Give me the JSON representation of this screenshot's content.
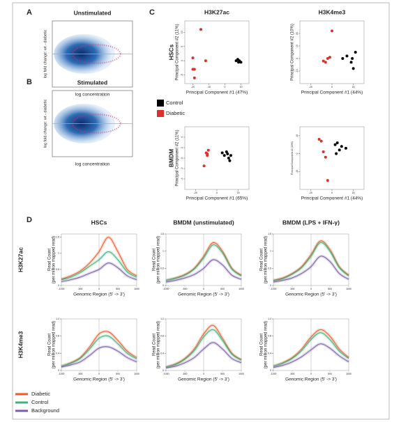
{
  "ma": [
    {
      "letter": "A",
      "title": "Unstimulated",
      "ylabel": "log fold change: wt - diabetic",
      "xlabel": "log concentration"
    },
    {
      "letter": "B",
      "title": "Stimulated",
      "ylabel": "log fold change: wt - diabetic",
      "xlabel": "log concentration"
    }
  ],
  "pca": {
    "letter": "C",
    "columns": [
      "H3K27ac",
      "H3K4me3"
    ],
    "rows": [
      "HSCs",
      "BMDM"
    ],
    "legend": [
      {
        "name": "Control",
        "color": "#000000"
      },
      {
        "name": "Diabetic",
        "color": "#d9312b"
      }
    ],
    "plots": [
      {
        "xlabel": "Principal Component #1 (47%)",
        "ylabel": "Principal Component #2 (11%)",
        "xlim": [
          -25,
          15
        ],
        "ylim": [
          -8,
          14
        ],
        "xticks": [
          -20,
          -10,
          0,
          10
        ],
        "yticks": [
          -5,
          0,
          5,
          10
        ],
        "control": {
          "x": [
            7,
            8,
            8.5,
            9,
            10
          ],
          "y": [
            0,
            0.5,
            -0.5,
            0,
            -0.5
          ]
        },
        "diabetic": {
          "x": [
            -20,
            -19,
            -15,
            -19,
            -20,
            -12
          ],
          "y": [
            1,
            -3,
            11,
            -6,
            -3,
            0
          ]
        }
      },
      {
        "xlabel": "Principal Component #1 (44%)",
        "ylabel": "Principal Component #2 (10%)",
        "xlim": [
          -30,
          30
        ],
        "ylim": [
          -20,
          30
        ],
        "xticks": [
          -20,
          0,
          20
        ],
        "yticks": [
          -10,
          0,
          10,
          20
        ],
        "control": {
          "x": [
            10,
            14,
            18,
            20,
            22,
            19
          ],
          "y": [
            0,
            2,
            -3,
            -8,
            5,
            0
          ]
        },
        "diabetic": {
          "x": [
            -8,
            -6,
            -4,
            -2,
            0
          ],
          "y": [
            -2,
            -3,
            0,
            1,
            22
          ]
        }
      },
      {
        "xlabel": "Principal Component #1 (65%)",
        "ylabel": "Principal Component #2 (11%)",
        "xlim": [
          -30,
          30
        ],
        "ylim": [
          -6,
          6
        ],
        "xticks": [
          -20,
          0,
          20
        ],
        "yticks": [
          -4,
          -2,
          0,
          2,
          4
        ],
        "control": {
          "x": [
            5,
            7,
            9,
            10,
            11,
            12,
            13
          ],
          "y": [
            1,
            0.5,
            1.2,
            0.8,
            0,
            -0.5,
            0.5
          ]
        },
        "diabetic": {
          "x": [
            -10,
            -9,
            -8,
            -9,
            -12
          ],
          "y": [
            1,
            0.5,
            1.5,
            0.8,
            -1.5
          ]
        }
      },
      {
        "xlabel": "Principal Component #1 (44%)",
        "ylabel": "Principal Component #2 (22%)",
        "xlim": [
          -30,
          30
        ],
        "ylim": [
          -20,
          15
        ],
        "xticks": [
          -20,
          0,
          20
        ],
        "yticks": [
          -10,
          0,
          10
        ],
        "control": {
          "x": [
            3,
            5,
            7,
            9,
            13,
            4
          ],
          "y": [
            5,
            6,
            2,
            4,
            3,
            0
          ]
        },
        "diabetic": {
          "x": [
            -12,
            -10,
            -8,
            -6,
            -4
          ],
          "y": [
            8,
            7,
            1,
            -2,
            -15
          ]
        }
      }
    ]
  },
  "profiles": {
    "letter": "D",
    "columns": [
      "HSCs",
      "BMDM (unstimulated)",
      "BMDM (LPS + IFN-γ)"
    ],
    "rows": [
      "H3K27ac",
      "H3K4me3"
    ],
    "xlabel": "Genomic Region (5' -> 3')",
    "ylabel": [
      "Read Count",
      "(per million mapped read)"
    ],
    "x": [
      -1000,
      -750,
      -500,
      -250,
      0,
      250,
      500,
      750,
      1000
    ],
    "xlim": [
      -1000,
      1000
    ],
    "xticks": [
      -1000,
      -500,
      0,
      500,
      1000
    ],
    "series": [
      {
        "name": "Diabetic",
        "color": "#ee5a2c"
      },
      {
        "name": "Control",
        "color": "#3cb37a"
      },
      {
        "name": "Background",
        "color": "#7b5ea7"
      }
    ],
    "plots": [
      {
        "ylim": [
          0,
          1.6
        ],
        "yticks": [
          0,
          0.5,
          1,
          1.5
        ],
        "values": [
          [
            0.2,
            0.3,
            0.45,
            0.7,
            1.05,
            1.5,
            1.05,
            0.5,
            0.3
          ],
          [
            0.18,
            0.26,
            0.4,
            0.6,
            0.8,
            1.05,
            0.8,
            0.42,
            0.26
          ],
          [
            0.12,
            0.18,
            0.26,
            0.38,
            0.5,
            0.7,
            0.55,
            0.3,
            0.18
          ]
        ]
      },
      {
        "ylim": [
          0,
          1.5
        ],
        "yticks": [
          0,
          0.5,
          1,
          1.5
        ],
        "values": [
          [
            0.15,
            0.22,
            0.32,
            0.5,
            0.85,
            1.25,
            1.0,
            0.5,
            0.3
          ],
          [
            0.15,
            0.21,
            0.3,
            0.48,
            0.8,
            1.18,
            0.95,
            0.48,
            0.28
          ],
          [
            0.1,
            0.15,
            0.22,
            0.32,
            0.5,
            0.75,
            0.6,
            0.3,
            0.18
          ]
        ]
      },
      {
        "ylim": [
          0,
          1.5
        ],
        "yticks": [
          0,
          0.5,
          1,
          1.5
        ],
        "values": [
          [
            0.15,
            0.22,
            0.35,
            0.55,
            0.9,
            1.3,
            1.05,
            0.55,
            0.3
          ],
          [
            0.14,
            0.2,
            0.33,
            0.52,
            0.85,
            1.25,
            1.0,
            0.52,
            0.28
          ],
          [
            0.1,
            0.15,
            0.22,
            0.35,
            0.55,
            0.85,
            0.7,
            0.35,
            0.18
          ]
        ]
      },
      {
        "ylim": [
          0,
          1.2
        ],
        "yticks": [
          0,
          0.4,
          0.8,
          1.2
        ],
        "values": [
          [
            0.1,
            0.18,
            0.3,
            0.55,
            0.85,
            0.9,
            0.7,
            0.45,
            0.3
          ],
          [
            0.1,
            0.17,
            0.28,
            0.5,
            0.75,
            0.8,
            0.62,
            0.4,
            0.27
          ],
          [
            0.08,
            0.13,
            0.2,
            0.35,
            0.52,
            0.55,
            0.45,
            0.3,
            0.2
          ]
        ]
      },
      {
        "ylim": [
          0,
          1.2
        ],
        "yticks": [
          0,
          0.4,
          0.8,
          1.2
        ],
        "values": [
          [
            0.08,
            0.15,
            0.28,
            0.5,
            0.85,
            1.05,
            0.75,
            0.4,
            0.25
          ],
          [
            0.08,
            0.14,
            0.26,
            0.46,
            0.78,
            0.95,
            0.7,
            0.38,
            0.24
          ],
          [
            0.06,
            0.1,
            0.18,
            0.3,
            0.5,
            0.65,
            0.5,
            0.28,
            0.18
          ]
        ]
      },
      {
        "ylim": [
          0,
          1.2
        ],
        "yticks": [
          0,
          0.4,
          0.8,
          1.2
        ],
        "values": [
          [
            0.1,
            0.18,
            0.3,
            0.5,
            0.78,
            0.95,
            0.8,
            0.5,
            0.3
          ],
          [
            0.1,
            0.17,
            0.28,
            0.46,
            0.72,
            0.88,
            0.72,
            0.45,
            0.28
          ],
          [
            0.07,
            0.12,
            0.2,
            0.32,
            0.48,
            0.62,
            0.52,
            0.34,
            0.2
          ]
        ]
      }
    ]
  }
}
